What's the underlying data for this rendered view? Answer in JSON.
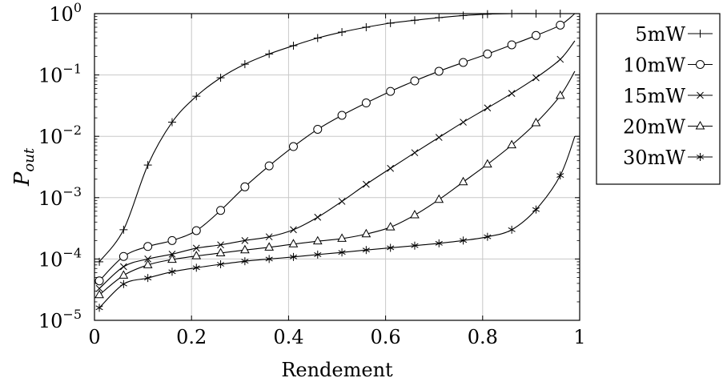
{
  "chart_data": {
    "type": "line",
    "xlabel": "Rendement",
    "ylabel": {
      "base": "P",
      "sub": "out"
    },
    "xlim": [
      0,
      1
    ],
    "ylim": [
      1e-05,
      1
    ],
    "yscale": "log",
    "grid": true,
    "legend_position": "outside-right",
    "x_ticks": [
      {
        "value": 0,
        "label": "0"
      },
      {
        "value": 0.2,
        "label": "0.2"
      },
      {
        "value": 0.4,
        "label": "0.4"
      },
      {
        "value": 0.6,
        "label": "0.6"
      },
      {
        "value": 0.8,
        "label": "0.8"
      },
      {
        "value": 1,
        "label": "1"
      }
    ],
    "y_ticks": [
      {
        "value": 1e-05,
        "base": "10",
        "exp": "−5"
      },
      {
        "value": 0.0001,
        "base": "10",
        "exp": "−4"
      },
      {
        "value": 0.001,
        "base": "10",
        "exp": "−3"
      },
      {
        "value": 0.01,
        "base": "10",
        "exp": "−2"
      },
      {
        "value": 0.1,
        "base": "10",
        "exp": "−1"
      },
      {
        "value": 1,
        "base": "10",
        "exp": "0"
      }
    ],
    "series": [
      {
        "name": "5mW",
        "marker": "plus",
        "points": [
          [
            0.01,
            9e-05
          ],
          [
            0.06,
            0.0003
          ],
          [
            0.11,
            0.0034
          ],
          [
            0.16,
            0.017
          ],
          [
            0.21,
            0.045
          ],
          [
            0.26,
            0.09
          ],
          [
            0.31,
            0.15
          ],
          [
            0.36,
            0.22
          ],
          [
            0.41,
            0.3
          ],
          [
            0.46,
            0.4
          ],
          [
            0.51,
            0.5
          ],
          [
            0.56,
            0.6
          ],
          [
            0.61,
            0.7
          ],
          [
            0.66,
            0.78
          ],
          [
            0.71,
            0.86
          ],
          [
            0.76,
            0.93
          ],
          [
            0.81,
            0.98
          ],
          [
            0.86,
            1.0
          ],
          [
            0.91,
            1.0
          ],
          [
            0.96,
            1.0
          ]
        ],
        "curve_end": [
          0.99,
          1.0
        ]
      },
      {
        "name": "10mW",
        "marker": "circle",
        "points": [
          [
            0.01,
            4.4e-05
          ],
          [
            0.06,
            0.00011
          ],
          [
            0.11,
            0.00016
          ],
          [
            0.16,
            0.0002
          ],
          [
            0.21,
            0.00029
          ],
          [
            0.26,
            0.00062
          ],
          [
            0.31,
            0.0015
          ],
          [
            0.36,
            0.0033
          ],
          [
            0.41,
            0.0068
          ],
          [
            0.46,
            0.013
          ],
          [
            0.51,
            0.022
          ],
          [
            0.56,
            0.035
          ],
          [
            0.61,
            0.054
          ],
          [
            0.66,
            0.08
          ],
          [
            0.71,
            0.115
          ],
          [
            0.76,
            0.16
          ],
          [
            0.81,
            0.22
          ],
          [
            0.86,
            0.31
          ],
          [
            0.91,
            0.44
          ],
          [
            0.96,
            0.65
          ]
        ],
        "curve_end": [
          0.99,
          1.0
        ]
      },
      {
        "name": "15mW",
        "marker": "cross",
        "points": [
          [
            0.01,
            3.3e-05
          ],
          [
            0.06,
            7.5e-05
          ],
          [
            0.11,
            0.0001
          ],
          [
            0.16,
            0.00012
          ],
          [
            0.21,
            0.00015
          ],
          [
            0.26,
            0.00017
          ],
          [
            0.31,
            0.0002
          ],
          [
            0.36,
            0.00023
          ],
          [
            0.41,
            0.0003
          ],
          [
            0.46,
            0.00048
          ],
          [
            0.51,
            0.00087
          ],
          [
            0.56,
            0.00165
          ],
          [
            0.61,
            0.003
          ],
          [
            0.66,
            0.0054
          ],
          [
            0.71,
            0.0096
          ],
          [
            0.76,
            0.017
          ],
          [
            0.81,
            0.029
          ],
          [
            0.86,
            0.05
          ],
          [
            0.91,
            0.09
          ],
          [
            0.96,
            0.18
          ]
        ],
        "curve_end": [
          0.99,
          0.36
        ]
      },
      {
        "name": "20mW",
        "marker": "triangle",
        "points": [
          [
            0.01,
            2.6e-05
          ],
          [
            0.06,
            5.4e-05
          ],
          [
            0.11,
            8e-05
          ],
          [
            0.16,
            9.8e-05
          ],
          [
            0.21,
            0.000112
          ],
          [
            0.26,
            0.000125
          ],
          [
            0.31,
            0.00014
          ],
          [
            0.36,
            0.000155
          ],
          [
            0.41,
            0.000175
          ],
          [
            0.46,
            0.000195
          ],
          [
            0.51,
            0.000215
          ],
          [
            0.56,
            0.000255
          ],
          [
            0.61,
            0.00033
          ],
          [
            0.66,
            0.00052
          ],
          [
            0.71,
            0.00093
          ],
          [
            0.76,
            0.0018
          ],
          [
            0.81,
            0.0035
          ],
          [
            0.86,
            0.0072
          ],
          [
            0.91,
            0.0165
          ],
          [
            0.96,
            0.046
          ]
        ],
        "curve_end": [
          0.99,
          0.115
        ]
      },
      {
        "name": "30mW",
        "marker": "star",
        "points": [
          [
            0.01,
            1.6e-05
          ],
          [
            0.06,
            3.9e-05
          ],
          [
            0.11,
            4.9e-05
          ],
          [
            0.16,
            6.2e-05
          ],
          [
            0.21,
            7.2e-05
          ],
          [
            0.26,
            8.2e-05
          ],
          [
            0.31,
            9.2e-05
          ],
          [
            0.36,
            0.0001
          ],
          [
            0.41,
            0.000108
          ],
          [
            0.46,
            0.000118
          ],
          [
            0.51,
            0.000128
          ],
          [
            0.56,
            0.00014
          ],
          [
            0.61,
            0.000152
          ],
          [
            0.66,
            0.000165
          ],
          [
            0.71,
            0.00018
          ],
          [
            0.76,
            0.0002
          ],
          [
            0.81,
            0.00023
          ],
          [
            0.86,
            0.0003
          ],
          [
            0.91,
            0.00064
          ],
          [
            0.96,
            0.0023
          ]
        ],
        "curve_end": [
          0.99,
          0.01
        ]
      }
    ]
  }
}
